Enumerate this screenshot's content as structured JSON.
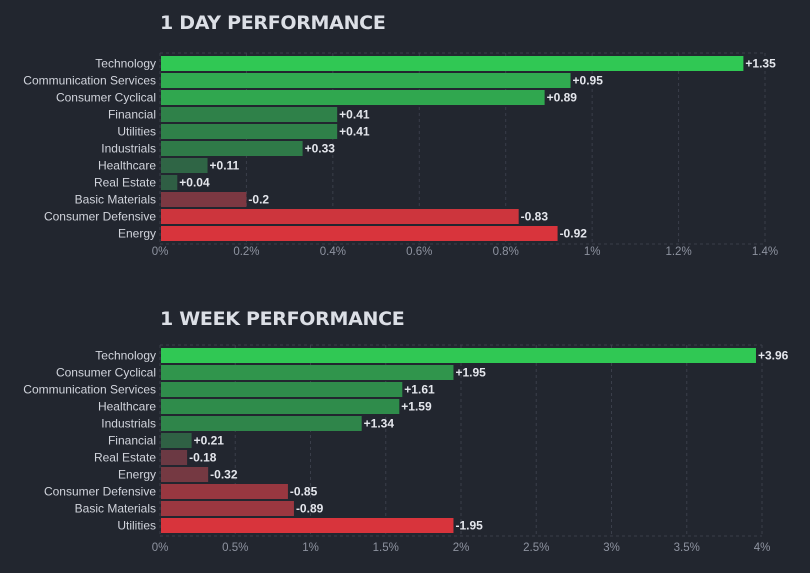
{
  "chart_data": [
    {
      "type": "bar",
      "orientation": "horizontal",
      "title": "1 DAY PERFORMANCE",
      "categories": [
        "Technology",
        "Communication Services",
        "Consumer Cyclical",
        "Financial",
        "Utilities",
        "Industrials",
        "Healthcare",
        "Real Estate",
        "Basic Materials",
        "Consumer Defensive",
        "Energy"
      ],
      "values": [
        1.35,
        0.95,
        0.89,
        0.41,
        0.41,
        0.33,
        0.11,
        0.04,
        -0.2,
        -0.83,
        -0.92
      ],
      "value_labels": [
        "+1.35",
        "+0.95",
        "+0.89",
        "+0.41",
        "+0.41",
        "+0.33",
        "+0.11",
        "+0.04",
        "-0.2",
        "-0.83",
        "-0.92"
      ],
      "bar_length": "absolute value",
      "xlim": [
        0,
        1.4
      ],
      "xticks": [
        0,
        0.2,
        0.4,
        0.6,
        0.8,
        1.0,
        1.2,
        1.4
      ],
      "xtick_labels": [
        "0%",
        "0.2%",
        "0.4%",
        "0.6%",
        "0.8%",
        "1%",
        "1.2%",
        "1.4%"
      ],
      "xlabel": "",
      "ylabel": "",
      "grid": true
    },
    {
      "type": "bar",
      "orientation": "horizontal",
      "title": "1 WEEK PERFORMANCE",
      "categories": [
        "Technology",
        "Consumer Cyclical",
        "Communication Services",
        "Healthcare",
        "Industrials",
        "Financial",
        "Real Estate",
        "Energy",
        "Consumer Defensive",
        "Basic Materials",
        "Utilities"
      ],
      "values": [
        3.96,
        1.95,
        1.61,
        1.59,
        1.34,
        0.21,
        -0.18,
        -0.32,
        -0.85,
        -0.89,
        -1.95
      ],
      "value_labels": [
        "+3.96",
        "+1.95",
        "+1.61",
        "+1.59",
        "+1.34",
        "+0.21",
        "-0.18",
        "-0.32",
        "-0.85",
        "-0.89",
        "-1.95"
      ],
      "bar_length": "absolute value",
      "xlim": [
        0,
        4
      ],
      "xticks": [
        0,
        0.5,
        1,
        1.5,
        2,
        2.5,
        3,
        3.5,
        4
      ],
      "xtick_labels": [
        "0%",
        "0.5%",
        "1%",
        "1.5%",
        "2%",
        "2.5%",
        "3%",
        "3.5%",
        "4%"
      ],
      "xlabel": "",
      "ylabel": "",
      "grid": true
    }
  ],
  "colors": {
    "background": "#22262f",
    "grid": "#3a3e4a",
    "positive_strong": "#30c854",
    "positive_weak": "#2f5843",
    "negative_weak": "#5a3a44",
    "negative_strong": "#d8343c"
  }
}
